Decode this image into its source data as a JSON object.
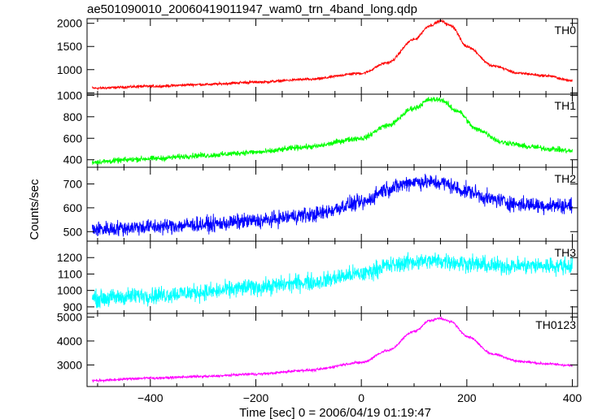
{
  "chart_data": {
    "type": "line",
    "title": "ae501090010_20060419011947_wam0_trn_4band_long.qdp",
    "xlabel": "Time [sec] 0 = 2006/04/19 01:19:47",
    "ylabel": "Counts/sec",
    "xlim": [
      -520,
      410
    ],
    "x_ticks": [
      -400,
      -200,
      0,
      200,
      400
    ],
    "x_tick_labels": [
      "−400",
      "−200",
      "0",
      "200",
      "400"
    ],
    "grid": false,
    "panels": [
      {
        "name": "TH0",
        "color": "#ff0000",
        "ylim": [
          470,
          2100
        ],
        "y_ticks": [
          500,
          1000,
          1500,
          2000
        ],
        "y_tick_labels": [
          "",
          "1000",
          "1500",
          "2000"
        ],
        "noise": 25,
        "trend": [
          [
            -510,
            600
          ],
          [
            -400,
            640
          ],
          [
            -300,
            680
          ],
          [
            -200,
            730
          ],
          [
            -100,
            790
          ],
          [
            0,
            920
          ],
          [
            50,
            1150
          ],
          [
            100,
            1650
          ],
          [
            130,
            1950
          ],
          [
            150,
            2050
          ],
          [
            170,
            1950
          ],
          [
            200,
            1500
          ],
          [
            250,
            1080
          ],
          [
            300,
            920
          ],
          [
            350,
            870
          ],
          [
            400,
            760
          ]
        ]
      },
      {
        "name": "TH1",
        "color": "#00ff00",
        "ylim": [
          330,
          1010
        ],
        "y_ticks": [
          400,
          600,
          800,
          1000
        ],
        "y_tick_labels": [
          "400",
          "600",
          "800",
          "1000"
        ],
        "noise": 22,
        "trend": [
          [
            -510,
            380
          ],
          [
            -400,
            410
          ],
          [
            -300,
            440
          ],
          [
            -200,
            470
          ],
          [
            -100,
            520
          ],
          [
            0,
            600
          ],
          [
            50,
            720
          ],
          [
            100,
            880
          ],
          [
            130,
            960
          ],
          [
            150,
            960
          ],
          [
            180,
            860
          ],
          [
            220,
            680
          ],
          [
            270,
            560
          ],
          [
            320,
            520
          ],
          [
            360,
            500
          ],
          [
            400,
            480
          ]
        ]
      },
      {
        "name": "TH2",
        "color": "#0000ff",
        "ylim": [
          460,
          770
        ],
        "y_ticks": [
          500,
          600,
          700
        ],
        "y_tick_labels": [
          "500",
          "600",
          "700"
        ],
        "noise": 28,
        "trend": [
          [
            -510,
            510
          ],
          [
            -400,
            520
          ],
          [
            -300,
            530
          ],
          [
            -200,
            545
          ],
          [
            -100,
            570
          ],
          [
            0,
            620
          ],
          [
            50,
            680
          ],
          [
            100,
            710
          ],
          [
            150,
            705
          ],
          [
            200,
            670
          ],
          [
            250,
            635
          ],
          [
            300,
            615
          ],
          [
            350,
            610
          ],
          [
            400,
            610
          ]
        ]
      },
      {
        "name": "TH3",
        "color": "#00ffff",
        "ylim": [
          860,
          1300
        ],
        "y_ticks": [
          900,
          1000,
          1100,
          1200,
          1300
        ],
        "y_tick_labels": [
          "900",
          "1000",
          "1100",
          "1200",
          ""
        ],
        "noise": 45,
        "trend": [
          [
            -510,
            950
          ],
          [
            -400,
            970
          ],
          [
            -300,
            990
          ],
          [
            -200,
            1020
          ],
          [
            -100,
            1050
          ],
          [
            0,
            1100
          ],
          [
            50,
            1150
          ],
          [
            100,
            1175
          ],
          [
            150,
            1180
          ],
          [
            200,
            1165
          ],
          [
            250,
            1150
          ],
          [
            300,
            1150
          ],
          [
            350,
            1150
          ],
          [
            400,
            1150
          ]
        ]
      },
      {
        "name": "TH0123",
        "color": "#ff00ff",
        "ylim": [
          2100,
          5150
        ],
        "y_ticks": [
          3000,
          4000,
          5000
        ],
        "y_tick_labels": [
          "3000",
          "4000",
          "5000"
        ],
        "noise": 45,
        "trend": [
          [
            -510,
            2350
          ],
          [
            -400,
            2450
          ],
          [
            -300,
            2520
          ],
          [
            -200,
            2620
          ],
          [
            -100,
            2780
          ],
          [
            0,
            3100
          ],
          [
            50,
            3600
          ],
          [
            100,
            4400
          ],
          [
            130,
            4850
          ],
          [
            150,
            4950
          ],
          [
            170,
            4800
          ],
          [
            200,
            4200
          ],
          [
            250,
            3450
          ],
          [
            300,
            3150
          ],
          [
            350,
            3050
          ],
          [
            400,
            2980
          ]
        ]
      }
    ]
  }
}
